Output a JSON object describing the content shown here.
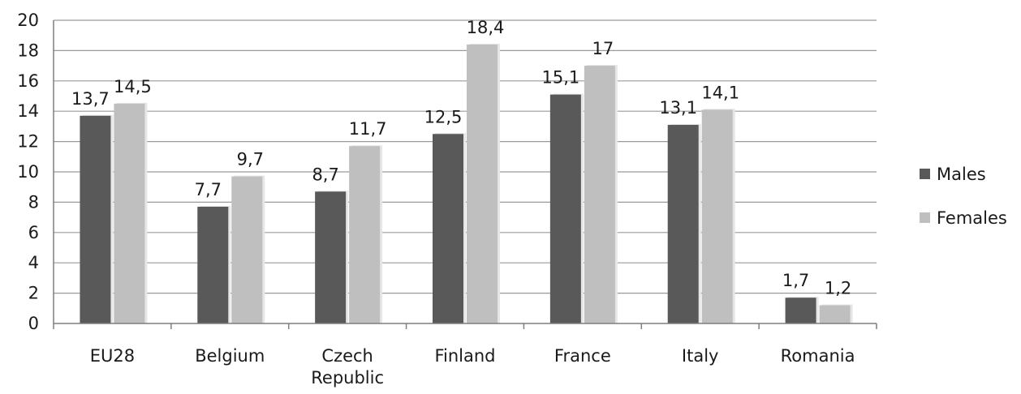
{
  "chart_data": {
    "type": "bar",
    "categories": [
      [
        "EU28"
      ],
      [
        "Belgium"
      ],
      [
        "Czech",
        "Republic"
      ],
      [
        "Finland"
      ],
      [
        "France"
      ],
      [
        "Italy"
      ],
      [
        "Romania"
      ]
    ],
    "series": [
      {
        "name": "Males",
        "color": "#595959",
        "values": [
          13.7,
          7.7,
          8.7,
          12.5,
          15.1,
          13.1,
          1.7
        ],
        "labels": [
          "13,7",
          "7,7",
          "8,7",
          "12,5",
          "15,1",
          "13,1",
          "1,7"
        ]
      },
      {
        "name": "Females",
        "color": "#bfbfbf",
        "values": [
          14.5,
          9.7,
          11.7,
          18.4,
          17,
          14.1,
          1.2
        ],
        "labels": [
          "14,5",
          "9,7",
          "11,7",
          "18,4",
          "17",
          "14,1",
          "1,2"
        ]
      }
    ],
    "ylim": [
      0,
      20
    ],
    "yticks": [
      0,
      2,
      4,
      6,
      8,
      10,
      12,
      14,
      16,
      18,
      20
    ],
    "grid": true,
    "legend_position": "right"
  }
}
